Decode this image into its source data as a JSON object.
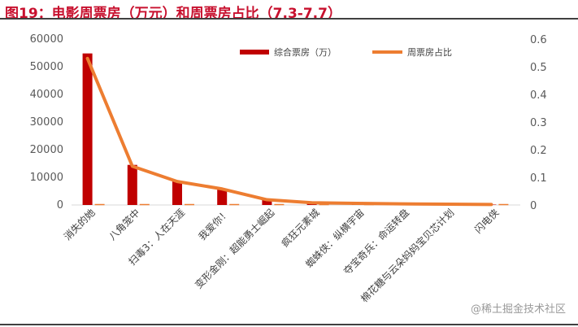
{
  "title": "图19：电影周票房（万元）和周票房占比（7.3-7.7）",
  "watermark": "@稀土掘金技术社区",
  "chart_data": {
    "type": "bar+line",
    "categories": [
      "消失的她",
      "八角笼中",
      "扫毒3：人在天涯",
      "我爱你！",
      "变形金刚：超能勇士崛起",
      "疯狂元素城",
      "蜘蛛侠：纵横宇宙",
      "夺宝奇兵：命运转盘",
      "棉花糖与云朵妈妈宝贝芯计划",
      "闪电侠"
    ],
    "series": [
      {
        "name": "综合票房（万）",
        "type": "bar",
        "axis": "left",
        "color": "#c00000",
        "values": [
          54800,
          14500,
          8700,
          5900,
          1900,
          700,
          450,
          300,
          200,
          150
        ]
      },
      {
        "name": "周票房占比",
        "type": "line",
        "axis": "right",
        "color": "#ed7d31",
        "values": [
          0.53,
          0.14,
          0.085,
          0.058,
          0.019,
          0.008,
          0.006,
          0.004,
          0.003,
          0.002
        ]
      }
    ],
    "y_left": {
      "min": 0,
      "max": 60000,
      "ticks": [
        0,
        10000,
        20000,
        30000,
        40000,
        50000,
        60000
      ]
    },
    "y_right": {
      "min": 0,
      "max": 0.6,
      "ticks": [
        0,
        0.1,
        0.2,
        0.3,
        0.4,
        0.5,
        0.6
      ]
    },
    "legend_position": "top-right",
    "grid": false
  }
}
